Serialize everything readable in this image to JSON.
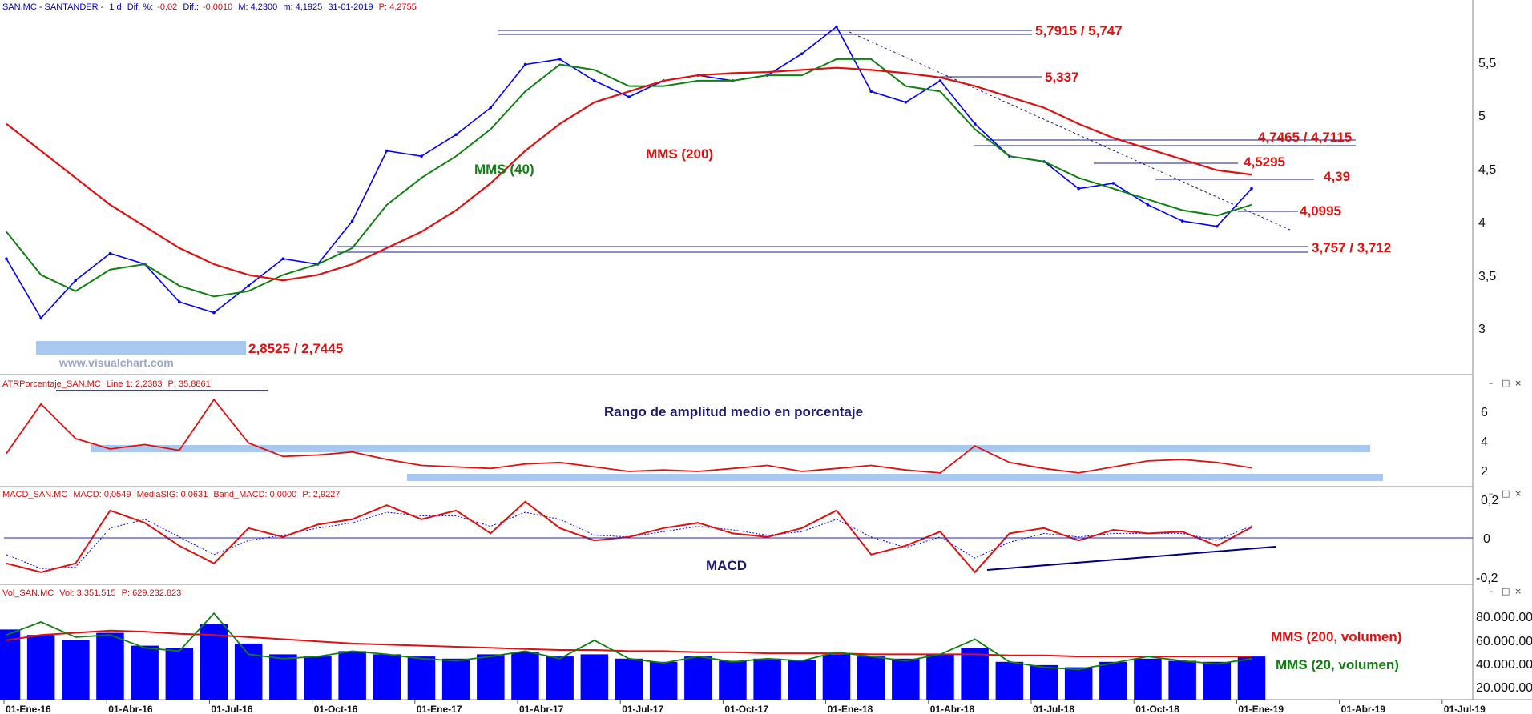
{
  "panels": {
    "price": {
      "header": {
        "symbol": "SAN.MC - SANTANDER -",
        "period": "1 d",
        "dif_pct_label": "Dif. %:",
        "dif_pct": "-0,02",
        "dif_label": "Dif.:",
        "dif": "-0,0010",
        "max_label": "M: 4,2300",
        "min_label": "m: 4,1925",
        "date_label": "31-01-2019",
        "p_label": "P: 4,2755"
      },
      "axis_ticks": [
        "5,5",
        "5",
        "4,5",
        "4",
        "3,5",
        "3"
      ],
      "watermark": "www.visualchart.com",
      "ma_labels": {
        "mms40": "MMS (40)",
        "mms200": "MMS (200)"
      },
      "levels": [
        {
          "label": "5,7915 / 5,747",
          "value": 5.7915
        },
        {
          "label": "5,337",
          "value": 5.337
        },
        {
          "label": "4,7465 / 4,7115",
          "value": 4.7465
        },
        {
          "label": "4,5295",
          "value": 4.5295
        },
        {
          "label": "4,39",
          "value": 4.39
        },
        {
          "label": "4,0995",
          "value": 4.0995
        },
        {
          "label": "3,757 / 3,712",
          "value": 3.757
        },
        {
          "label": "2,8525 / 2,7445",
          "value": 2.8525
        }
      ]
    },
    "atr": {
      "header": {
        "name": "ATRPorcentaje_SAN.MC",
        "line": "Line 1: 2,2383",
        "p": "P: 35,8861"
      },
      "title": "Rango de amplitud medio en porcentaje",
      "axis_ticks": [
        "6",
        "4",
        "2"
      ]
    },
    "macd": {
      "header": {
        "name": "MACD_SAN.MC",
        "macd": "MACD: 0,0549",
        "sig": "MediaSIG: 0,0631",
        "band": "Band_MACD: 0,0000",
        "p": "P: 2,9227"
      },
      "title": "MACD",
      "axis_ticks": [
        "0,2",
        "0",
        "-0,2"
      ]
    },
    "volume": {
      "header": {
        "name": "Vol_SAN.MC",
        "vol": "Vol: 3.351.515",
        "p": "P: 629.232.823"
      },
      "axis_ticks": [
        "80.000.000",
        "60.000.000",
        "40.000.000",
        "20.000.000"
      ],
      "ma_labels": {
        "mms200": "MMS (200, volumen)",
        "mms20": "MMS (20, volumen)"
      }
    }
  },
  "x_axis": {
    "labels": [
      "01-Ene-16",
      "01-Abr-16",
      "01-Jul-16",
      "01-Oct-16",
      "01-Ene-17",
      "01-Abr-17",
      "01-Jul-17",
      "01-Oct-17",
      "01-Ene-18",
      "01-Abr-18",
      "01-Jul-18",
      "01-Oct-18",
      "01-Ene-19",
      "01-Abr-19",
      "01-Jul-19"
    ]
  },
  "colors": {
    "price": "#0000ff",
    "mms200": "#e01010",
    "mms40": "#108010",
    "level": "#d01010",
    "support_band": "#a8c8f0",
    "macd_trend": "#000080",
    "title_navy": "#1a1a6e"
  },
  "chart_data": [
    {
      "type": "line",
      "title": "",
      "ylim": [
        2.6,
        5.85
      ],
      "x": [
        "2016-01",
        "2016-02",
        "2016-03",
        "2016-04",
        "2016-05",
        "2016-06",
        "2016-07",
        "2016-08",
        "2016-09",
        "2016-10",
        "2016-11",
        "2016-12",
        "2017-01",
        "2017-02",
        "2017-03",
        "2017-04",
        "2017-05",
        "2017-06",
        "2017-07",
        "2017-08",
        "2017-09",
        "2017-10",
        "2017-11",
        "2017-12",
        "2018-01",
        "2018-02",
        "2018-03",
        "2018-04",
        "2018-05",
        "2018-06",
        "2018-07",
        "2018-08",
        "2018-09",
        "2018-10",
        "2018-11",
        "2018-12",
        "2019-01"
      ],
      "series": [
        {
          "name": "SAN.MC",
          "values": [
            3.6,
            3.05,
            3.4,
            3.65,
            3.55,
            3.2,
            3.1,
            3.35,
            3.6,
            3.55,
            3.95,
            4.6,
            4.55,
            4.75,
            5.0,
            5.4,
            5.45,
            5.25,
            5.1,
            5.25,
            5.3,
            5.25,
            5.3,
            5.5,
            5.75,
            5.15,
            5.05,
            5.25,
            4.85,
            4.55,
            4.5,
            4.25,
            4.3,
            4.1,
            3.95,
            3.9,
            4.25
          ]
        },
        {
          "name": "MMS (40)",
          "values": [
            3.85,
            3.45,
            3.3,
            3.5,
            3.55,
            3.35,
            3.25,
            3.3,
            3.45,
            3.55,
            3.7,
            4.1,
            4.35,
            4.55,
            4.8,
            5.15,
            5.4,
            5.35,
            5.2,
            5.2,
            5.25,
            5.25,
            5.3,
            5.3,
            5.45,
            5.45,
            5.2,
            5.15,
            4.8,
            4.55,
            4.5,
            4.35,
            4.25,
            4.15,
            4.05,
            4.0,
            4.1
          ]
        },
        {
          "name": "MMS (200)",
          "values": [
            4.85,
            4.6,
            4.35,
            4.1,
            3.9,
            3.7,
            3.55,
            3.45,
            3.4,
            3.45,
            3.55,
            3.7,
            3.85,
            4.05,
            4.3,
            4.6,
            4.85,
            5.05,
            5.15,
            5.25,
            5.3,
            5.32,
            5.33,
            5.35,
            5.37,
            5.35,
            5.32,
            5.28,
            5.2,
            5.1,
            5.0,
            4.85,
            4.72,
            4.62,
            4.52,
            4.42,
            4.38
          ]
        }
      ]
    },
    {
      "type": "line",
      "title": "Rango de amplitud medio en porcentaje",
      "ylim": [
        1.2,
        7.4
      ],
      "series": [
        {
          "name": "ATRPorcentaje_SAN.MC",
          "values": [
            3.2,
            6.5,
            4.2,
            3.5,
            3.8,
            3.4,
            6.8,
            3.9,
            3.0,
            3.1,
            3.3,
            2.8,
            2.4,
            2.3,
            2.2,
            2.5,
            2.6,
            2.3,
            2.0,
            2.1,
            2.0,
            2.2,
            2.4,
            2.0,
            2.2,
            2.4,
            2.1,
            1.9,
            3.7,
            2.6,
            2.2,
            1.9,
            2.3,
            2.7,
            2.8,
            2.6,
            2.24
          ]
        }
      ]
    },
    {
      "type": "line",
      "title": "MACD",
      "ylim": [
        -0.26,
        0.24
      ],
      "series": [
        {
          "name": "MACD",
          "values": [
            -0.15,
            -0.2,
            -0.15,
            0.15,
            0.08,
            -0.05,
            -0.15,
            0.05,
            0.0,
            0.07,
            0.1,
            0.18,
            0.1,
            0.15,
            0.02,
            0.2,
            0.05,
            -0.02,
            0.0,
            0.05,
            0.08,
            0.02,
            0.0,
            0.05,
            0.15,
            -0.1,
            -0.05,
            0.03,
            -0.2,
            0.02,
            0.05,
            -0.02,
            0.04,
            0.02,
            0.03,
            -0.05,
            0.055
          ]
        },
        {
          "name": "MediaSIG",
          "values": [
            -0.1,
            -0.18,
            -0.17,
            0.05,
            0.1,
            0.0,
            -0.1,
            -0.02,
            0.01,
            0.05,
            0.08,
            0.14,
            0.12,
            0.12,
            0.06,
            0.14,
            0.1,
            0.01,
            0.0,
            0.03,
            0.06,
            0.04,
            0.01,
            0.03,
            0.1,
            0.0,
            -0.06,
            0.0,
            -0.12,
            -0.03,
            0.02,
            0.0,
            0.02,
            0.02,
            0.02,
            -0.02,
            0.063
          ]
        }
      ]
    },
    {
      "type": "bar",
      "ylim": [
        0,
        95000000
      ],
      "series": [
        {
          "name": "Vol_SAN.MC",
          "values": [
            65000000,
            60000000,
            55000000,
            62000000,
            50000000,
            48000000,
            70000000,
            52000000,
            42000000,
            40000000,
            45000000,
            42000000,
            40000000,
            38000000,
            42000000,
            44000000,
            40000000,
            42000000,
            38000000,
            35000000,
            40000000,
            36000000,
            38000000,
            37000000,
            42000000,
            40000000,
            38000000,
            42000000,
            48000000,
            35000000,
            32000000,
            30000000,
            35000000,
            38000000,
            36000000,
            35000000,
            40000000
          ]
        },
        {
          "name": "MMS (200, volumen)",
          "values": [
            55000000,
            60000000,
            62000000,
            64000000,
            63000000,
            61000000,
            60000000,
            58000000,
            56000000,
            54000000,
            52000000,
            51000000,
            50000000,
            49000000,
            48000000,
            47000000,
            46000000,
            46000000,
            45000000,
            45000000,
            44000000,
            44000000,
            43000000,
            43000000,
            43000000,
            42000000,
            42000000,
            42000000,
            42000000,
            41000000,
            41000000,
            40000000,
            40000000,
            40000000,
            40000000,
            40000000,
            40000000
          ]
        },
        {
          "name": "MMS (20, volumen)",
          "values": [
            60000000,
            72000000,
            58000000,
            60000000,
            48000000,
            45000000,
            80000000,
            42000000,
            38000000,
            40000000,
            45000000,
            42000000,
            38000000,
            36000000,
            40000000,
            45000000,
            38000000,
            55000000,
            38000000,
            34000000,
            40000000,
            35000000,
            38000000,
            36000000,
            44000000,
            40000000,
            36000000,
            42000000,
            56000000,
            35000000,
            30000000,
            28000000,
            34000000,
            40000000,
            36000000,
            33000000,
            38000000
          ]
        }
      ]
    }
  ]
}
